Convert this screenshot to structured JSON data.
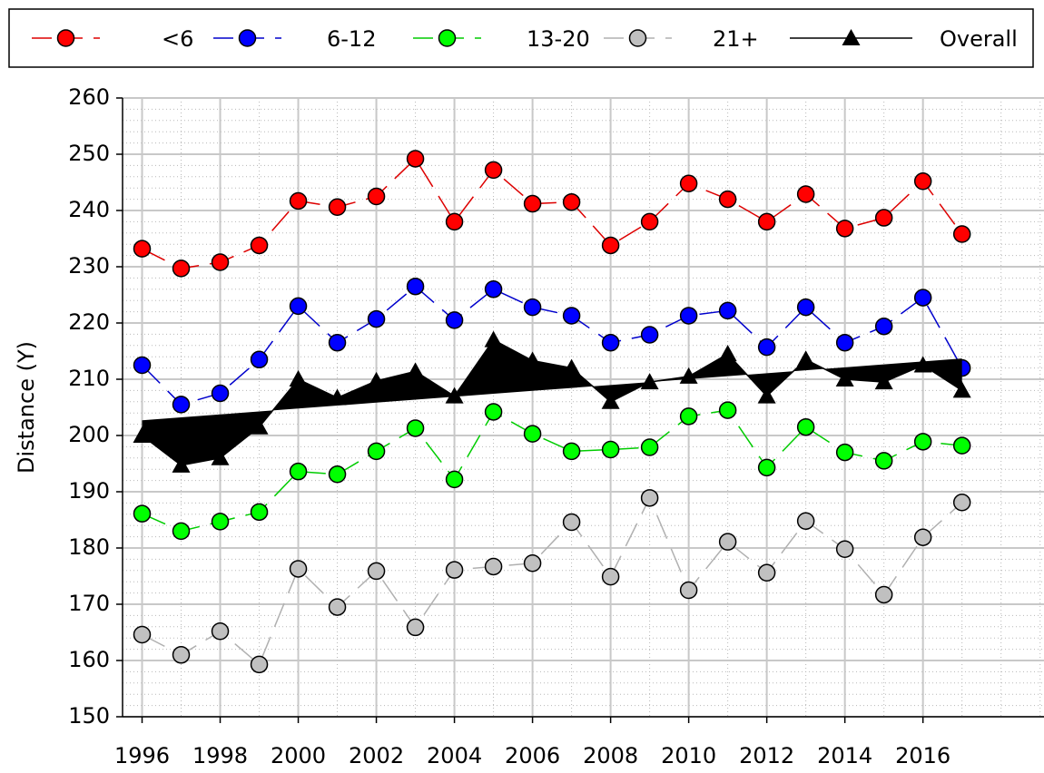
{
  "chart_data": {
    "type": "line",
    "y_label": "Distance (Y)",
    "x": [
      1996,
      1997,
      1998,
      1999,
      2000,
      2001,
      2002,
      2003,
      2004,
      2005,
      2006,
      2007,
      2008,
      2009,
      2010,
      2011,
      2012,
      2013,
      2014,
      2015,
      2016,
      2017
    ],
    "series": [
      {
        "name": "<6",
        "color": "#ff0000",
        "marker": "circle",
        "values": [
          233.2,
          229.7,
          230.8,
          233.8,
          241.7,
          240.6,
          242.5,
          249.2,
          238,
          247.2,
          241.2,
          241.5,
          233.8,
          238,
          244.8,
          242,
          238,
          242.9,
          236.8,
          238.7,
          245.2,
          235.8
        ]
      },
      {
        "name": "6-12",
        "color": "#0000ff",
        "marker": "circle",
        "values": [
          212.5,
          205.5,
          207.5,
          213.5,
          223,
          216.5,
          220.7,
          226.5,
          220.5,
          226,
          222.8,
          221.3,
          216.5,
          217.9,
          221.3,
          222.2,
          215.7,
          222.8,
          216.5,
          219.4,
          224.5,
          212
        ]
      },
      {
        "name": "13-20",
        "color": "#00ff00",
        "marker": "circle",
        "values": [
          186.1,
          183,
          184.7,
          186.4,
          193.6,
          193.1,
          197.2,
          201.3,
          192.2,
          204.2,
          200.3,
          197.2,
          197.5,
          197.9,
          203.4,
          204.5,
          194.3,
          201.5,
          197,
          195.5,
          198.9,
          198.2
        ]
      },
      {
        "name": "21+",
        "color": "#c0c0c0",
        "marker": "circle",
        "values": [
          164.6,
          161,
          165.2,
          159.3,
          176.3,
          169.5,
          175.9,
          165.9,
          176.1,
          176.7,
          177.3,
          184.6,
          174.9,
          188.9,
          172.5,
          181.1,
          175.6,
          184.8,
          179.8,
          171.7,
          181.9,
          188.1
        ]
      },
      {
        "name": "Overall",
        "color": "#000000",
        "marker": "triangle",
        "trend_fill": true,
        "values": [
          200,
          194.7,
          196,
          201.5,
          210,
          206.7,
          209.7,
          211.4,
          207,
          217,
          213.3,
          212,
          206,
          209.5,
          210.5,
          214.5,
          207,
          213.5,
          210,
          209.5,
          212.5,
          208
        ]
      }
    ],
    "xlim": [
      1995.5,
      2019.1
    ],
    "xticks": [
      1996,
      1998,
      2000,
      2002,
      2004,
      2006,
      2008,
      2010,
      2012,
      2014,
      2016
    ],
    "ylim": [
      150,
      260
    ],
    "yticks": [
      150,
      160,
      170,
      180,
      190,
      200,
      210,
      220,
      230,
      240,
      250,
      260
    ],
    "grid": true
  }
}
